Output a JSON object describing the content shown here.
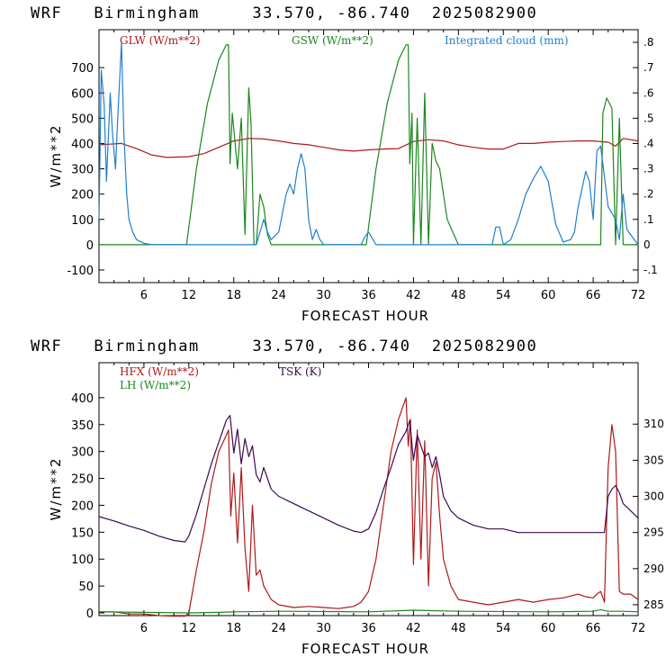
{
  "charts": [
    {
      "title": "WRF   Birmingham     33.570, -86.740  2025082900",
      "xlabel": "FORECAST HOUR",
      "ylabel": "W/m**2",
      "legend": {
        "glw": "GLW (W/m**2)",
        "gsw": "GSW (W/m**2)",
        "cloud": "Integrated cloud (mm)"
      },
      "xticks": [
        "6",
        "12",
        "18",
        "24",
        "30",
        "36",
        "42",
        "48",
        "54",
        "60",
        "66",
        "72"
      ],
      "yticks": [
        "-100",
        "0",
        "100",
        "200",
        "300",
        "400",
        "500",
        "600",
        "700"
      ],
      "rticks": [
        "-.1",
        "0",
        ".1",
        ".2",
        ".3",
        ".4",
        ".5",
        ".6",
        ".7",
        ".8"
      ]
    },
    {
      "title": "WRF   Birmingham     33.570, -86.740  2025082900",
      "xlabel": "FORECAST HOUR",
      "ylabel": "W/m**2",
      "legend": {
        "hfx": "HFX (W/m**2)",
        "lh": "LH  (W/m**2)",
        "tsk": "TSK (K)"
      },
      "xticks": [
        "6",
        "12",
        "18",
        "24",
        "30",
        "36",
        "42",
        "48",
        "54",
        "60",
        "66",
        "72"
      ],
      "yticks": [
        "0",
        "50",
        "100",
        "150",
        "200",
        "250",
        "300",
        "350",
        "400"
      ],
      "rticks": [
        "285",
        "290",
        "295",
        "300",
        "305",
        "310"
      ]
    }
  ],
  "colors": {
    "red": "#b01818",
    "green": "#1e861e",
    "blue": "#1f7fd0",
    "purple": "#3c0a50",
    "black": "#000000"
  },
  "chart_data": [
    {
      "type": "line",
      "x_range": [
        0,
        72
      ],
      "ylim": [
        -150,
        850
      ],
      "y2lim": [
        -0.15,
        0.85
      ],
      "series": [
        {
          "name": "GLW (W/m**2)",
          "axis": "left",
          "color": "#b01818",
          "x": [
            0,
            3,
            5,
            7,
            9,
            12,
            14,
            16,
            18,
            20,
            22,
            24,
            26,
            28,
            30,
            32,
            34,
            36,
            38,
            40,
            42,
            44,
            46,
            48,
            50,
            52,
            54,
            56,
            58,
            60,
            62,
            64,
            66,
            68,
            69,
            70,
            72
          ],
          "y": [
            395,
            400,
            380,
            355,
            345,
            348,
            360,
            385,
            410,
            420,
            418,
            410,
            400,
            395,
            385,
            375,
            370,
            375,
            378,
            380,
            408,
            415,
            410,
            395,
            385,
            378,
            378,
            400,
            400,
            405,
            408,
            410,
            410,
            405,
            390,
            420,
            410
          ]
        },
        {
          "name": "GSW (W/m**2)",
          "axis": "left",
          "color": "#1e861e",
          "x": [
            0,
            11.7,
            13,
            14.5,
            16,
            17,
            17.3,
            17.5,
            17.8,
            18.5,
            19,
            19.5,
            20,
            20.3,
            20.7,
            21,
            21.5,
            22,
            22.5,
            23,
            23.5,
            24,
            35.7,
            37,
            38.5,
            40,
            41,
            41.3,
            41.5,
            41.8,
            42,
            42.5,
            43,
            43.5,
            44,
            44.5,
            45,
            45.5,
            46.5,
            48,
            48.5,
            67,
            67.3,
            67.8,
            68.5,
            69,
            69.5,
            70,
            70.3,
            72
          ],
          "y": [
            0,
            0,
            300,
            560,
            730,
            790,
            790,
            320,
            520,
            300,
            500,
            40,
            620,
            480,
            0,
            0,
            200,
            150,
            40,
            0,
            0,
            0,
            0,
            300,
            560,
            730,
            790,
            790,
            320,
            520,
            0,
            500,
            0,
            600,
            0,
            400,
            330,
            300,
            100,
            0,
            0,
            0,
            520,
            580,
            540,
            0,
            500,
            0,
            0,
            0
          ]
        },
        {
          "name": "Integrated cloud (mm)",
          "axis": "right",
          "color": "#1f7fd0",
          "x": [
            0,
            0.3,
            0.7,
            1,
            1.5,
            1.8,
            2.2,
            2.5,
            3,
            3.3,
            3.7,
            4,
            4.5,
            5,
            6,
            7,
            21,
            21.5,
            22,
            22.5,
            23,
            24,
            25,
            25.5,
            26,
            26.5,
            27,
            27.5,
            28,
            28.5,
            29,
            29.5,
            30,
            35,
            35.5,
            36,
            37,
            52.5,
            53,
            53.5,
            54,
            55,
            56,
            57,
            58,
            59,
            60,
            61,
            62,
            63,
            63.5,
            64,
            65,
            65.5,
            66,
            66.5,
            67,
            68,
            69,
            69.5,
            70,
            70.5,
            72
          ],
          "y": [
            0.1,
            0.69,
            0.55,
            0.25,
            0.6,
            0.44,
            0.3,
            0.5,
            0.8,
            0.45,
            0.2,
            0.1,
            0.05,
            0.02,
            0.005,
            0,
            0,
            0.05,
            0.1,
            0.05,
            0.02,
            0.05,
            0.2,
            0.24,
            0.2,
            0.3,
            0.36,
            0.3,
            0.1,
            0.02,
            0.06,
            0.02,
            0,
            0,
            0.03,
            0.05,
            0,
            0,
            0.07,
            0.07,
            0,
            0.02,
            0.1,
            0.2,
            0.26,
            0.31,
            0.25,
            0.08,
            0.01,
            0.02,
            0.05,
            0.15,
            0.29,
            0.25,
            0.1,
            0.37,
            0.39,
            0.15,
            0.1,
            0.02,
            0.2,
            0.06,
            0
          ]
        }
      ]
    },
    {
      "type": "line",
      "x_range": [
        0,
        72
      ],
      "ylim": [
        -5,
        465
      ],
      "y2lim": [
        283.5,
        318.5
      ],
      "series": [
        {
          "name": "HFX (W/m**2)",
          "axis": "left",
          "color": "#b01818",
          "x": [
            0,
            2,
            4,
            6,
            8,
            10,
            11.5,
            12,
            13,
            14,
            15,
            16,
            17,
            17.3,
            17.6,
            18,
            18.5,
            19,
            19.5,
            20,
            20.5,
            21,
            21.5,
            22,
            23,
            24,
            26,
            28,
            30,
            32,
            34,
            35,
            36,
            37,
            38,
            39,
            40,
            41,
            41.3,
            41.6,
            42,
            42.5,
            43,
            43.5,
            44,
            44.5,
            45,
            45.5,
            46,
            47,
            48,
            50,
            52,
            54,
            56,
            58,
            60,
            62,
            64,
            65,
            66,
            66.5,
            67,
            67.5,
            68,
            68.5,
            69,
            69.5,
            70,
            71,
            72
          ],
          "y": [
            2,
            2,
            -2,
            -2,
            -5,
            -6,
            -6,
            0,
            80,
            150,
            240,
            300,
            330,
            340,
            180,
            260,
            130,
            270,
            120,
            40,
            200,
            70,
            80,
            50,
            25,
            15,
            10,
            12,
            10,
            8,
            12,
            20,
            40,
            100,
            200,
            300,
            360,
            400,
            310,
            360,
            90,
            340,
            100,
            320,
            50,
            250,
            280,
            180,
            100,
            50,
            25,
            20,
            15,
            20,
            25,
            20,
            25,
            28,
            35,
            30,
            28,
            35,
            40,
            20,
            270,
            350,
            300,
            40,
            35,
            35,
            25
          ]
        },
        {
          "name": "LH  (W/m**2)",
          "axis": "left",
          "color": "#1e861e",
          "x": [
            0,
            6,
            12,
            16,
            18,
            24,
            36,
            40,
            42,
            48,
            60,
            66,
            67,
            68,
            70,
            72
          ],
          "y": [
            2,
            1,
            0,
            1,
            2,
            3,
            2,
            4,
            5,
            3,
            2,
            3,
            6,
            3,
            3,
            2
          ]
        },
        {
          "name": "TSK (K)",
          "axis": "right",
          "color": "#3c0a50",
          "x": [
            0,
            2,
            4,
            6,
            8,
            10,
            11.5,
            12,
            13,
            14,
            15,
            16,
            17,
            17.5,
            18,
            18.5,
            19,
            19.5,
            20,
            20.5,
            21,
            21.5,
            22,
            23,
            24,
            26,
            28,
            30,
            32,
            34,
            35,
            36,
            37,
            38,
            39,
            40,
            41,
            41.5,
            42,
            42.5,
            43,
            43.5,
            44,
            44.5,
            45,
            45.5,
            46,
            47,
            48,
            50,
            52,
            54,
            56,
            58,
            60,
            62,
            64,
            65,
            66,
            66.5,
            67,
            67.5,
            68,
            68.5,
            69,
            69.5,
            70,
            71,
            72
          ],
          "y": [
            297.2,
            296.6,
            295.9,
            295.3,
            294.5,
            293.9,
            293.7,
            294.5,
            297.5,
            301,
            304.5,
            307.5,
            310.5,
            311.2,
            306,
            309.3,
            304.5,
            308,
            305.5,
            307,
            303,
            302,
            304,
            301,
            300,
            299,
            298,
            297,
            296,
            295.2,
            295,
            295.5,
            297.8,
            301,
            304,
            307.2,
            309,
            310.5,
            305,
            308.5,
            307,
            305.5,
            306,
            304,
            305.5,
            303,
            300,
            298,
            297,
            296,
            295.5,
            295.5,
            295,
            295,
            295,
            295,
            295,
            295,
            295,
            295,
            295,
            295,
            300,
            301,
            301.5,
            300.5,
            299,
            298,
            297
          ]
        }
      ]
    }
  ]
}
